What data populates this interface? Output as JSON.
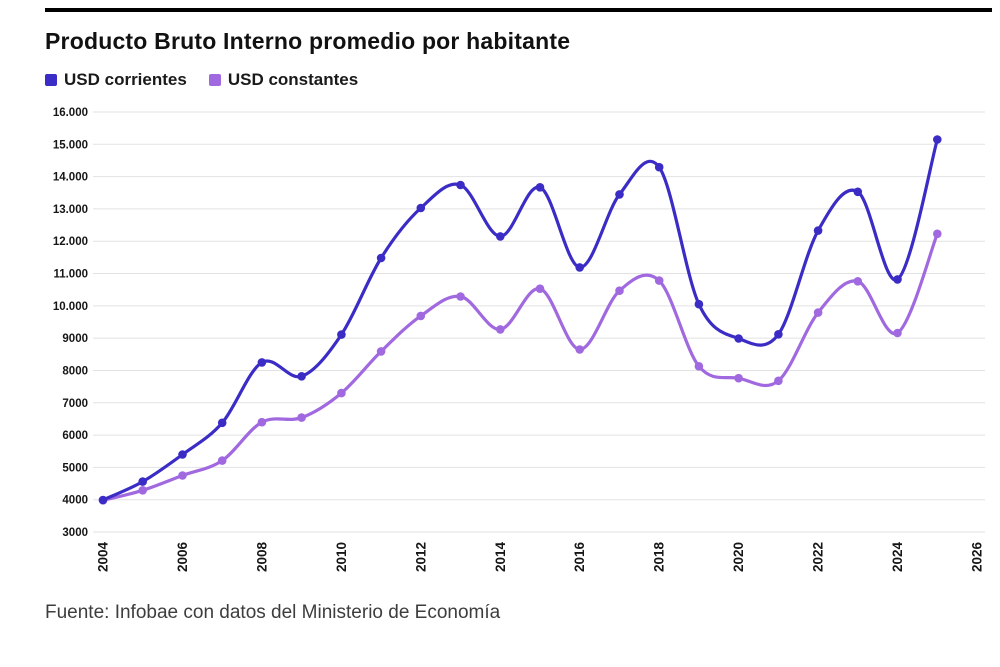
{
  "header": {
    "title": "Producto Bruto Interno promedio por habitante",
    "source": "Fuente: Infobae con datos del Ministerio de Economía"
  },
  "legend": {
    "items": [
      {
        "label": "USD corrientes",
        "color": "#3b2cc6"
      },
      {
        "label": "USD constantes",
        "color": "#a169df"
      }
    ]
  },
  "chart_data": {
    "type": "line",
    "title": "Producto Bruto Interno promedio por habitante",
    "xlabel": "",
    "ylabel": "",
    "xlim": [
      2004,
      2026
    ],
    "ylim": [
      3000,
      16000
    ],
    "grid": true,
    "legend_position": "top",
    "x": [
      2004,
      2005,
      2006,
      2007,
      2008,
      2009,
      2010,
      2011,
      2012,
      2013,
      2014,
      2015,
      2016,
      2017,
      2018,
      2019,
      2020,
      2021,
      2022,
      2023,
      2024,
      2025
    ],
    "series": [
      {
        "name": "USD corrientes",
        "color": "#3b2cc6",
        "values": [
          3990,
          4560,
          5400,
          6380,
          8250,
          7820,
          9110,
          11480,
          13030,
          13740,
          12150,
          13670,
          11190,
          13450,
          14290,
          10050,
          8990,
          9120,
          12330,
          13530,
          10820,
          15150
        ]
      },
      {
        "name": "USD constantes",
        "color": "#a169df",
        "values": [
          3980,
          4290,
          4750,
          5210,
          6400,
          6540,
          7300,
          8590,
          9690,
          10290,
          9270,
          10530,
          8650,
          10470,
          10780,
          8130,
          7760,
          7680,
          9790,
          10760,
          9160,
          12230
        ]
      }
    ],
    "y_ticks": [
      {
        "value": 3000,
        "label": "3000"
      },
      {
        "value": 4000,
        "label": "4000"
      },
      {
        "value": 5000,
        "label": "5000"
      },
      {
        "value": 6000,
        "label": "6000"
      },
      {
        "value": 7000,
        "label": "7000"
      },
      {
        "value": 8000,
        "label": "8000"
      },
      {
        "value": 9000,
        "label": "9000"
      },
      {
        "value": 10000,
        "label": "10.000"
      },
      {
        "value": 11000,
        "label": "11.000"
      },
      {
        "value": 12000,
        "label": "12.000"
      },
      {
        "value": 13000,
        "label": "13.000"
      },
      {
        "value": 14000,
        "label": "14.000"
      },
      {
        "value": 15000,
        "label": "15.000"
      },
      {
        "value": 16000,
        "label": "16.000"
      }
    ],
    "x_ticks": [
      {
        "value": 2004,
        "label": "2004"
      },
      {
        "value": 2006,
        "label": "2006"
      },
      {
        "value": 2008,
        "label": "2008"
      },
      {
        "value": 2010,
        "label": "2010"
      },
      {
        "value": 2012,
        "label": "2012"
      },
      {
        "value": 2014,
        "label": "2014"
      },
      {
        "value": 2016,
        "label": "2016"
      },
      {
        "value": 2018,
        "label": "2018"
      },
      {
        "value": 2020,
        "label": "2020"
      },
      {
        "value": 2022,
        "label": "2022"
      },
      {
        "value": 2024,
        "label": "2024"
      },
      {
        "value": 2026,
        "label": "2026"
      }
    ]
  }
}
